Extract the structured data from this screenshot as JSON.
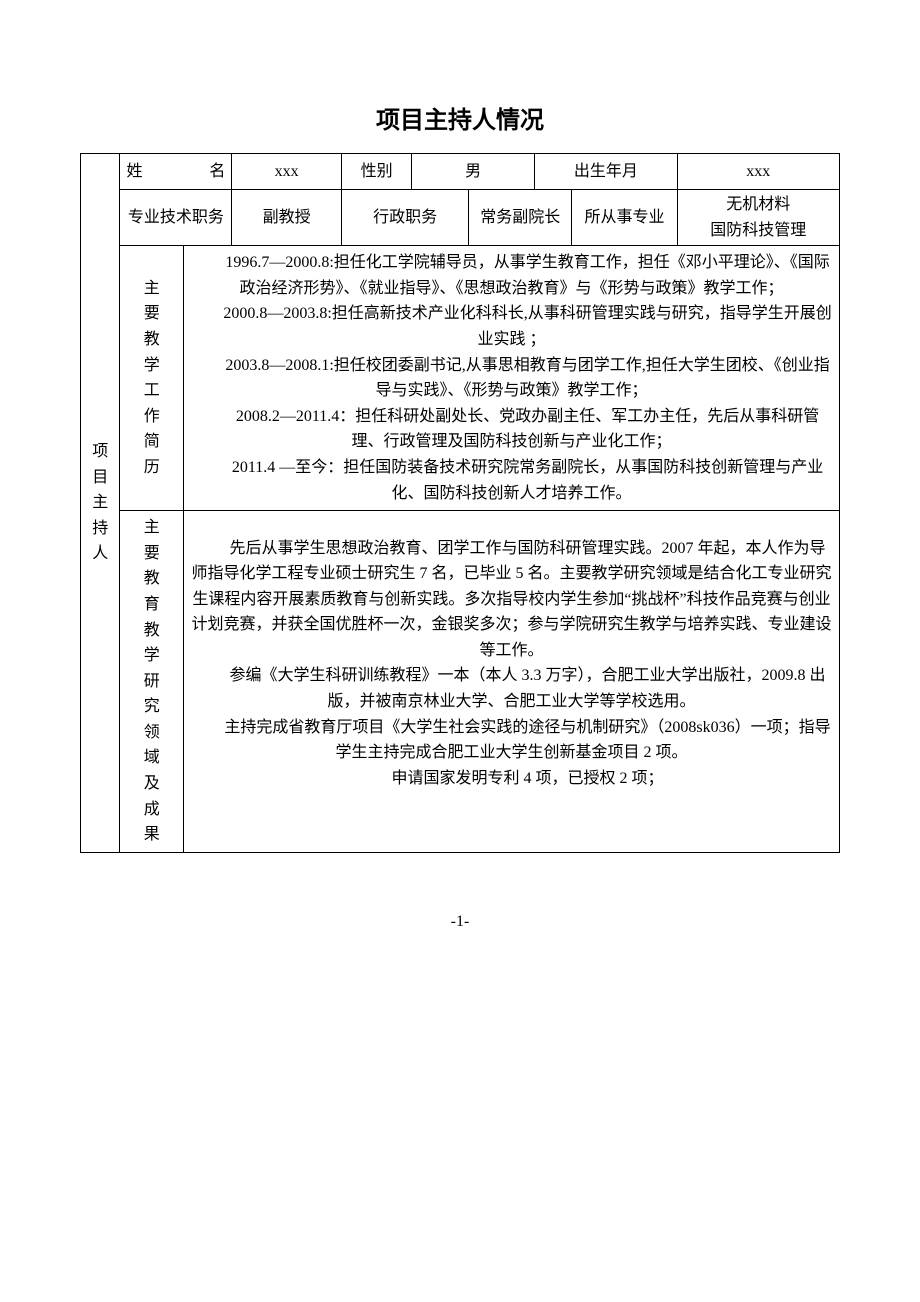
{
  "title": "项目主持人情况",
  "header": {
    "name_label": "姓　　名",
    "name_value": "xxx",
    "gender_label": "性别",
    "gender_value": "男",
    "birth_label": "出生年月",
    "birth_value": "xxx",
    "tech_title_label": "专业技术职务",
    "tech_title_value": "副教授",
    "admin_label": "行政职务",
    "admin_value": "常务副院长",
    "field_label": "所从事专业",
    "field_value": "无机材料\n国防科技管理"
  },
  "side_label": "项\n目\n主\n持\n人",
  "section1": {
    "label": "主要教学工作简历",
    "paragraphs": [
      "1996.7—2000.8:担任化工学院辅导员，从事学生教育工作，担任《邓小平理论》、《国际政治经济形势》、《就业指导》、《思想政治教育》与《形势与政策》教学工作；",
      "2000.8—2003.8:担任高新技术产业化科科长,从事科研管理实践与研究，指导学生开展创业实践 ；",
      "2003.8—2008.1:担任校团委副书记,从事思相教育与团学工作,担任大学生团校、《创业指导与实践》、《形势与政策》教学工作；",
      "2008.2—2011.4：担任科研处副处长、党政办副主任、军工办主任，先后从事科研管理、行政管理及国防科技创新与产业化工作；",
      "2011.4 —至今：担任国防装备技术研究院常务副院长，从事国防科技创新管理与产业化、国防科技创新人才培养工作。"
    ]
  },
  "section2": {
    "label": "主要教育教学研究领域及成果",
    "paragraphs": [
      "先后从事学生思想政治教育、团学工作与国防科研管理实践。2007 年起，本人作为导师指导化学工程专业硕士研究生 7 名，已毕业 5 名。主要教学研究领域是结合化工专业研究生课程内容开展素质教育与创新实践。多次指导校内学生参加“挑战杯”科技作品竞赛与创业计划竞赛，并获全国优胜杯一次，金银奖多次；参与学院研究生教学与培养实践、专业建设等工作。",
      "参编《大学生科研训练教程》一本（本人 3.3 万字），合肥工业大学出版社，2009.8 出版，并被南京林业大学、合肥工业大学等学校选用。",
      "主持完成省教育厅项目《大学生社会实践的途径与机制研究》（2008sk036）一项；指导学生主持完成合肥工业大学生创新基金项目 2 项。",
      "申请国家发明专利 4 项，已授权 2 项；"
    ]
  },
  "page_number": "-1-",
  "colors": {
    "text": "#000000",
    "background": "#ffffff",
    "border": "#000000"
  },
  "typography": {
    "title_fontsize": 24,
    "body_fontsize": 16,
    "line_height": 2.15,
    "font_family": "SimSun"
  }
}
